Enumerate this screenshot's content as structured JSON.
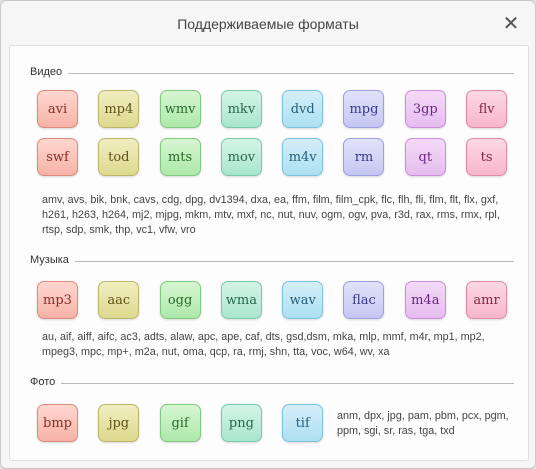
{
  "window": {
    "title": "Поддерживаемые форматы",
    "close_glyph": "✕"
  },
  "video": {
    "label": "Видео",
    "row1": [
      "avi",
      "mp4",
      "wmv",
      "mkv",
      "dvd",
      "mpg",
      "3gp",
      "flv"
    ],
    "row2": [
      "swf",
      "tod",
      "mts",
      "mov",
      "m4v",
      "rm",
      "qt",
      "ts"
    ],
    "extras": "amv, avs, bik, bnk, cavs, cdg, dpg, dv1394, dxa, ea, ffm, film, film_cpk, flc, flh, fli, flm, flt, flx, gxf, h261, h263, h264, mj2, mjpg, mkm, mtv, mxf, nc, nut, nuv, ogm, ogv, pva, r3d, rax, rms, rmx, rpl, rtsp, sdp, smk, thp, vc1, vfw, vro"
  },
  "music": {
    "label": "Музыка",
    "row1": [
      "mp3",
      "aac",
      "ogg",
      "wma",
      "wav",
      "flac",
      "m4a",
      "amr"
    ],
    "extras": "au, aif, aiff, aifc, ac3, adts, alaw, apc, ape, caf, dts, gsd,dsm, mka, mlp, mmf, m4r, mp1, mp2, mpeg3, mpc, mp+, m2a, nut, oma, qcp, ra, rmj, shn, tta, voc, w64, wv, xa"
  },
  "photo": {
    "label": "Фото",
    "row1": [
      "bmp",
      "jpg",
      "gif",
      "png",
      "tif"
    ],
    "extras": "anm, dpx, jpg, pam, pbm, pcx, pgm, ppm, sgi, sr, ras, tga, txd"
  },
  "colors": {
    "badge_palette": [
      "red",
      "olive",
      "green",
      "teal",
      "blue",
      "indigo",
      "purple",
      "pink"
    ],
    "text": "#444444",
    "rule": "#b9b9b9"
  },
  "icons": {
    "close": "close-icon"
  }
}
